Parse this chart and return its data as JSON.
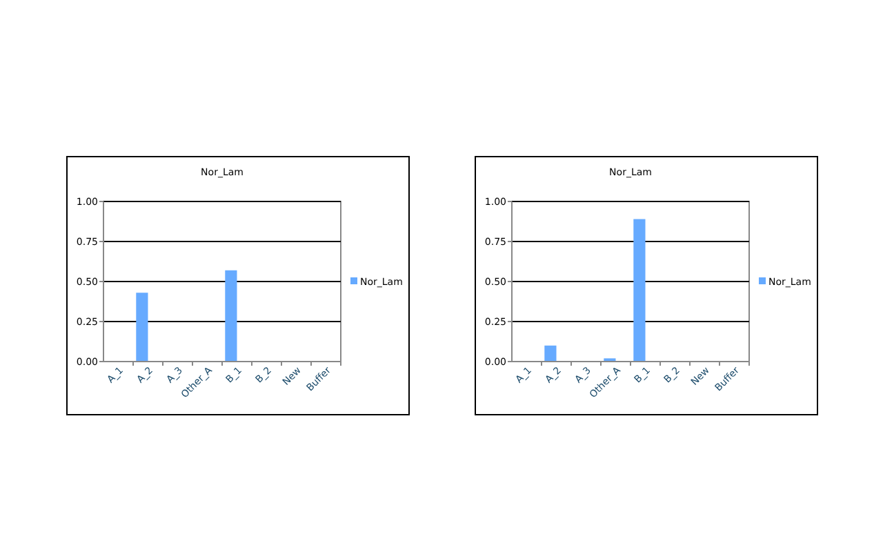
{
  "chart_data": [
    {
      "type": "bar",
      "title": "Nor_Lam",
      "categories": [
        "A_1",
        "A_2",
        "A_3",
        "Other_A",
        "B_1",
        "B_2",
        "New",
        "Buffer"
      ],
      "series": [
        {
          "name": "Nor_Lam",
          "color": "#66aaff",
          "values": [
            0,
            0.43,
            0,
            0,
            0.57,
            0,
            0,
            0
          ]
        }
      ],
      "ylim": [
        0,
        1
      ],
      "yticks": [
        {
          "value": 0,
          "label": "0.00"
        },
        {
          "value": 0.25,
          "label": "0.25"
        },
        {
          "value": 0.5,
          "label": "0.50"
        },
        {
          "value": 0.75,
          "label": "0.75"
        },
        {
          "value": 1,
          "label": "1.00"
        }
      ],
      "grid": "y",
      "legend": "right"
    },
    {
      "type": "bar",
      "title": "Nor_Lam",
      "categories": [
        "A_1",
        "A_2",
        "A_3",
        "Other_A",
        "B_1",
        "B_2",
        "New",
        "Buffer"
      ],
      "series": [
        {
          "name": "Nor_Lam",
          "color": "#66aaff",
          "values": [
            0,
            0.1,
            0,
            0.02,
            0.89,
            0,
            0,
            0
          ]
        }
      ],
      "ylim": [
        0,
        1
      ],
      "yticks": [
        {
          "value": 0,
          "label": "0.00"
        },
        {
          "value": 0.25,
          "label": "0.25"
        },
        {
          "value": 0.5,
          "label": "0.50"
        },
        {
          "value": 0.75,
          "label": "0.75"
        },
        {
          "value": 1,
          "label": "1.00"
        }
      ],
      "grid": "y",
      "legend": "right"
    }
  ]
}
